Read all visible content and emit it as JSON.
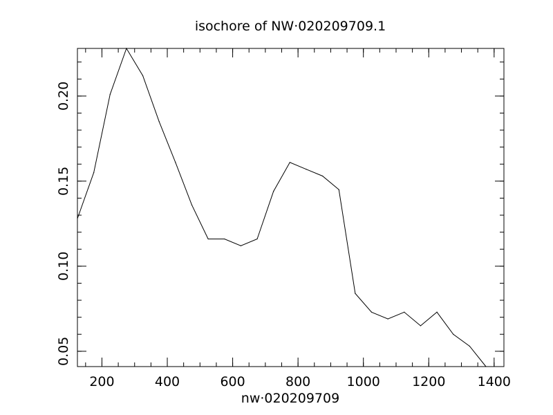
{
  "chart_data": {
    "type": "line",
    "title": "isochore of NW·020209709.1",
    "xlabel": "nw·020209709",
    "ylabel": "",
    "xlim": [
      125,
      1430
    ],
    "ylim": [
      0.041,
      0.228
    ],
    "x_ticks": [
      {
        "value": 200,
        "label": "200"
      },
      {
        "value": 400,
        "label": "400"
      },
      {
        "value": 600,
        "label": "600"
      },
      {
        "value": 800,
        "label": "800"
      },
      {
        "value": 1000,
        "label": "1000"
      },
      {
        "value": 1200,
        "label": "1200"
      },
      {
        "value": 1400,
        "label": "1400"
      }
    ],
    "y_ticks": [
      {
        "value": 0.05,
        "label": "0.05"
      },
      {
        "value": 0.1,
        "label": "0.10"
      },
      {
        "value": 0.15,
        "label": "0.15"
      },
      {
        "value": 0.2,
        "label": "0.20"
      }
    ],
    "x_minor_step": 50,
    "y_minor_step": 0.01,
    "grid": false,
    "series": [
      {
        "color": "#000000",
        "x": [
          125,
          175,
          225,
          275,
          325,
          375,
          425,
          475,
          525,
          575,
          625,
          675,
          725,
          775,
          825,
          875,
          925,
          975,
          1025,
          1075,
          1125,
          1175,
          1225,
          1275,
          1325,
          1375
        ],
        "y": [
          0.128,
          0.155,
          0.201,
          0.228,
          0.212,
          0.185,
          0.161,
          0.136,
          0.116,
          0.116,
          0.112,
          0.116,
          0.144,
          0.161,
          0.157,
          0.153,
          0.145,
          0.084,
          0.073,
          0.069,
          0.073,
          0.065,
          0.073,
          0.06,
          0.053,
          0.041
        ]
      }
    ]
  }
}
